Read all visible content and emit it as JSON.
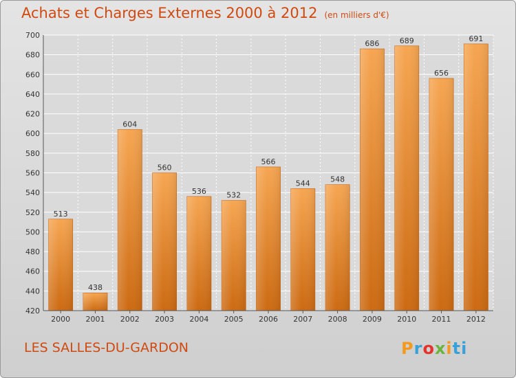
{
  "title": "Achats et Charges Externes 2000 à 2012",
  "subtitle": "(en milliers d'€)",
  "location": "LES SALLES-DU-GARDON",
  "logo": {
    "letters": [
      "P",
      "r",
      "o",
      "x",
      "i",
      "ti"
    ]
  },
  "colors": {
    "bar": "#f0902e",
    "bar_dark": "#cc6a12",
    "title": "#d04a10",
    "grid": "#ffffff"
  },
  "chart_data": {
    "type": "bar",
    "title": "Achats et Charges Externes 2000 à 2012",
    "subtitle": "(en milliers d'€)",
    "categories": [
      "2000",
      "2001",
      "2002",
      "2003",
      "2004",
      "2005",
      "2006",
      "2007",
      "2008",
      "2009",
      "2010",
      "2011",
      "2012"
    ],
    "values": [
      513,
      438,
      604,
      560,
      536,
      532,
      566,
      544,
      548,
      686,
      689,
      656,
      691
    ],
    "ylim": [
      420,
      700
    ],
    "yticks": [
      420,
      440,
      460,
      480,
      500,
      520,
      540,
      560,
      580,
      600,
      620,
      640,
      660,
      680,
      700
    ],
    "grid": true
  }
}
